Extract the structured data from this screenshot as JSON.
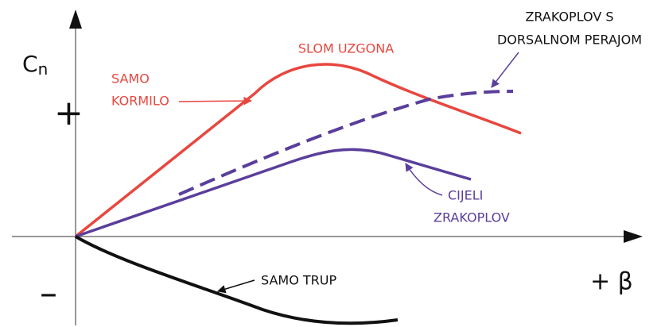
{
  "axes": {
    "y_label": {
      "main": "C",
      "sub": "n"
    },
    "y_positive": "+",
    "y_negative": "–",
    "x_label": "+ β"
  },
  "labels": {
    "stall": "SLOM UZGONA",
    "rudder_only": [
      "SAMO",
      "KORMILO"
    ],
    "dorsal_fin": [
      "ZRAKOPLOV S",
      "DORSALNOM PERAJOM"
    ],
    "whole_aircraft": [
      "CIJELI",
      "ZRAKOPLOV"
    ],
    "fuselage_only": "SAMO TRUP"
  }
}
